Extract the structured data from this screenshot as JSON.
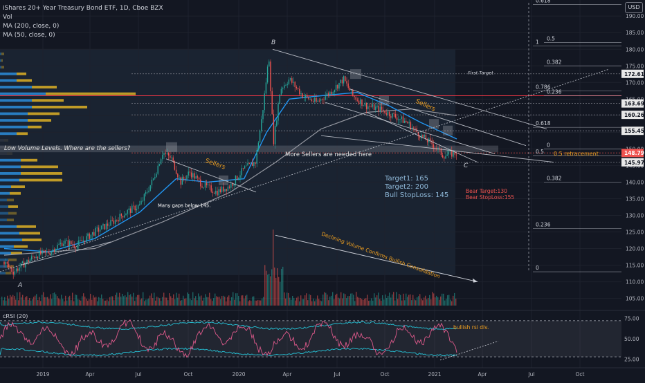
{
  "header": {
    "title": "iShares 20+ Year Treasury Bond ETF, 1D, Cboe BZX",
    "indicators": [
      "Vol",
      "MA (200, close, 0)",
      "MA (50, close, 0)"
    ],
    "currency": "USD"
  },
  "colors": {
    "background": "#131722",
    "candle_up": "#26a69a",
    "candle_down": "#ef5350",
    "ma50": "#2196f3",
    "ma200": "#9598a1",
    "annotation_orange": "#f0a020",
    "profile_buy": "#2a83c9",
    "profile_sell": "#c9a227",
    "rsi_line": "#e05a8c",
    "rsi_band": "#26c6da",
    "pink_line": "#f23645",
    "target_text": "#8fb8d8"
  },
  "chart_data": [
    {
      "type": "line",
      "name": "price",
      "x_ticks": [
        "2019",
        "Apr",
        "Jul",
        "Oct",
        "2020",
        "Apr",
        "Jul",
        "Oct",
        "2021",
        "Apr",
        "Jul",
        "Oct"
      ],
      "ylim": [
        102,
        194
      ],
      "y_ticks": [
        105,
        110,
        115,
        120,
        125,
        130,
        135,
        140,
        145,
        150,
        155,
        160,
        165,
        170,
        175,
        180,
        185,
        190
      ],
      "price_path": [
        [
          0,
          116
        ],
        [
          0.02,
          113
        ],
        [
          0.04,
          115
        ],
        [
          0.07,
          118
        ],
        [
          0.1,
          119
        ],
        [
          0.13,
          122
        ],
        [
          0.16,
          121
        ],
        [
          0.2,
          125
        ],
        [
          0.24,
          128
        ],
        [
          0.27,
          131
        ],
        [
          0.3,
          133
        ],
        [
          0.33,
          141
        ],
        [
          0.35,
          149
        ],
        [
          0.37,
          147
        ],
        [
          0.39,
          140
        ],
        [
          0.41,
          143
        ],
        [
          0.44,
          139
        ],
        [
          0.47,
          137
        ],
        [
          0.5,
          139
        ],
        [
          0.53,
          144
        ],
        [
          0.555,
          146
        ],
        [
          0.57,
          160
        ],
        [
          0.585,
          178
        ],
        [
          0.595,
          152
        ],
        [
          0.61,
          168
        ],
        [
          0.63,
          171
        ],
        [
          0.66,
          166
        ],
        [
          0.69,
          164
        ],
        [
          0.72,
          167
        ],
        [
          0.75,
          171
        ],
        [
          0.77,
          166
        ],
        [
          0.8,
          163
        ],
        [
          0.83,
          162
        ],
        [
          0.86,
          160
        ],
        [
          0.89,
          158
        ],
        [
          0.92,
          154
        ],
        [
          0.95,
          151
        ],
        [
          0.97,
          148
        ],
        [
          1.0,
          148.79
        ]
      ],
      "ma50_path": [
        [
          0,
          120
        ],
        [
          0.1,
          119
        ],
        [
          0.2,
          123
        ],
        [
          0.3,
          131
        ],
        [
          0.38,
          141
        ],
        [
          0.45,
          140
        ],
        [
          0.53,
          141
        ],
        [
          0.58,
          155
        ],
        [
          0.63,
          165
        ],
        [
          0.7,
          166
        ],
        [
          0.78,
          167
        ],
        [
          0.85,
          163
        ],
        [
          0.92,
          158
        ],
        [
          1.0,
          153
        ]
      ],
      "ma200_path": [
        [
          0,
          118
        ],
        [
          0.2,
          120
        ],
        [
          0.35,
          128
        ],
        [
          0.5,
          137
        ],
        [
          0.6,
          146
        ],
        [
          0.7,
          156
        ],
        [
          0.8,
          161
        ],
        [
          0.9,
          162
        ],
        [
          1.0,
          160
        ]
      ],
      "price_labels": [
        {
          "value": 172.61,
          "text": "172.61"
        },
        {
          "value": 163.69,
          "text": "163.69"
        },
        {
          "value": 160.26,
          "text": "160.26"
        },
        {
          "value": 155.45,
          "text": "155.45"
        },
        {
          "value": 148.79,
          "text": "148.79",
          "highlight": true
        },
        {
          "value": 145.97,
          "text": "145.97"
        }
      ],
      "fib_levels": [
        {
          "label": "0.618",
          "value": 193.5
        },
        {
          "label": "0.5",
          "value": 182
        },
        {
          "label": "1",
          "value": 181
        },
        {
          "label": "0.382",
          "value": 175
        },
        {
          "label": "0.786",
          "value": 167.5
        },
        {
          "label": "0.236",
          "value": 166
        },
        {
          "label": "0.618",
          "value": 156.5
        },
        {
          "label": "0",
          "value": 150
        },
        {
          "label": "0.5",
          "value": 148
        },
        {
          "label": "0.382",
          "value": 140
        },
        {
          "label": "0.236",
          "value": 126
        },
        {
          "label": "0",
          "value": 113
        }
      ],
      "volume_profile": [
        {
          "price": 178,
          "buy": 0.01,
          "sell": 0.02
        },
        {
          "price": 176,
          "buy": 0.01,
          "sell": 0.01
        },
        {
          "price": 174,
          "buy": 0.01,
          "sell": 0.02
        },
        {
          "price": 172,
          "buy": 0.12,
          "sell": 0.07
        },
        {
          "price": 170,
          "buy": 0.12,
          "sell": 0.11
        },
        {
          "price": 168,
          "buy": 0.23,
          "sell": 0.18
        },
        {
          "price": 166,
          "buy": 0.33,
          "sell": 0.65
        },
        {
          "price": 164,
          "buy": 0.23,
          "sell": 0.23
        },
        {
          "price": 162,
          "buy": 0.23,
          "sell": 0.4
        },
        {
          "price": 160,
          "buy": 0.2,
          "sell": 0.23
        },
        {
          "price": 158,
          "buy": 0.2,
          "sell": 0.17
        },
        {
          "price": 156,
          "buy": 0.2,
          "sell": 0.1
        },
        {
          "price": 154,
          "buy": 0.12,
          "sell": 0.08
        },
        {
          "price": 152,
          "buy": 0.03,
          "sell": 0.03
        },
        {
          "price": 150,
          "buy": 0.04,
          "sell": 0.04
        },
        {
          "price": 148,
          "buy": 0.05,
          "sell": 0.04
        },
        {
          "price": 146,
          "buy": 0.15,
          "sell": 0.12
        },
        {
          "price": 144,
          "buy": 0.15,
          "sell": 0.27
        },
        {
          "price": 142,
          "buy": 0.15,
          "sell": 0.3
        },
        {
          "price": 140,
          "buy": 0.14,
          "sell": 0.31
        },
        {
          "price": 138,
          "buy": 0.08,
          "sell": 0.1
        },
        {
          "price": 136,
          "buy": 0.07,
          "sell": 0.08
        },
        {
          "price": 134,
          "buy": 0.05,
          "sell": 0.05
        },
        {
          "price": 132,
          "buy": 0.06,
          "sell": 0.07
        },
        {
          "price": 130,
          "buy": 0.06,
          "sell": 0.06
        },
        {
          "price": 128,
          "buy": 0.05,
          "sell": 0.05
        },
        {
          "price": 126,
          "buy": 0.12,
          "sell": 0.14
        },
        {
          "price": 124,
          "buy": 0.14,
          "sell": 0.15
        },
        {
          "price": 122,
          "buy": 0.16,
          "sell": 0.14
        },
        {
          "price": 120,
          "buy": 0.1,
          "sell": 0.1
        },
        {
          "price": 118,
          "buy": 0.08,
          "sell": 0.08
        },
        {
          "price": 116,
          "buy": 0.06,
          "sell": 0.06
        },
        {
          "price": 114,
          "buy": 0.05,
          "sell": 0.05
        },
        {
          "price": 112,
          "buy": 0.04,
          "sell": 0.04
        }
      ],
      "annotations": {
        "wave_a": "A",
        "wave_b": "B",
        "wave_c": "C",
        "first_target": "First Target",
        "low_volume": "Low Volume Levels. Where are the sellers?",
        "more_sellers": "More Sellers are needed here",
        "sellers_left": "Sellers",
        "sellers_right": "Sellers",
        "gaps": "Many gaps below 145.",
        "targets": [
          "Target1: 165",
          "Target2: 200",
          "Bull StopLoss: 145"
        ],
        "bear": [
          "Bear Target:130",
          "Bear StopLoss:155"
        ],
        "retracement": "0.5 retracement",
        "declining": "Declining Volume Confirms Bullish Consolidation"
      }
    },
    {
      "type": "line",
      "name": "cRSI (20)",
      "ylim": [
        18,
        82
      ],
      "y_ticks": [
        25,
        50,
        75
      ],
      "tick_labels": [
        "25.00",
        "50.00",
        "75.00"
      ],
      "divergence_note": "bullish rsi div."
    }
  ]
}
